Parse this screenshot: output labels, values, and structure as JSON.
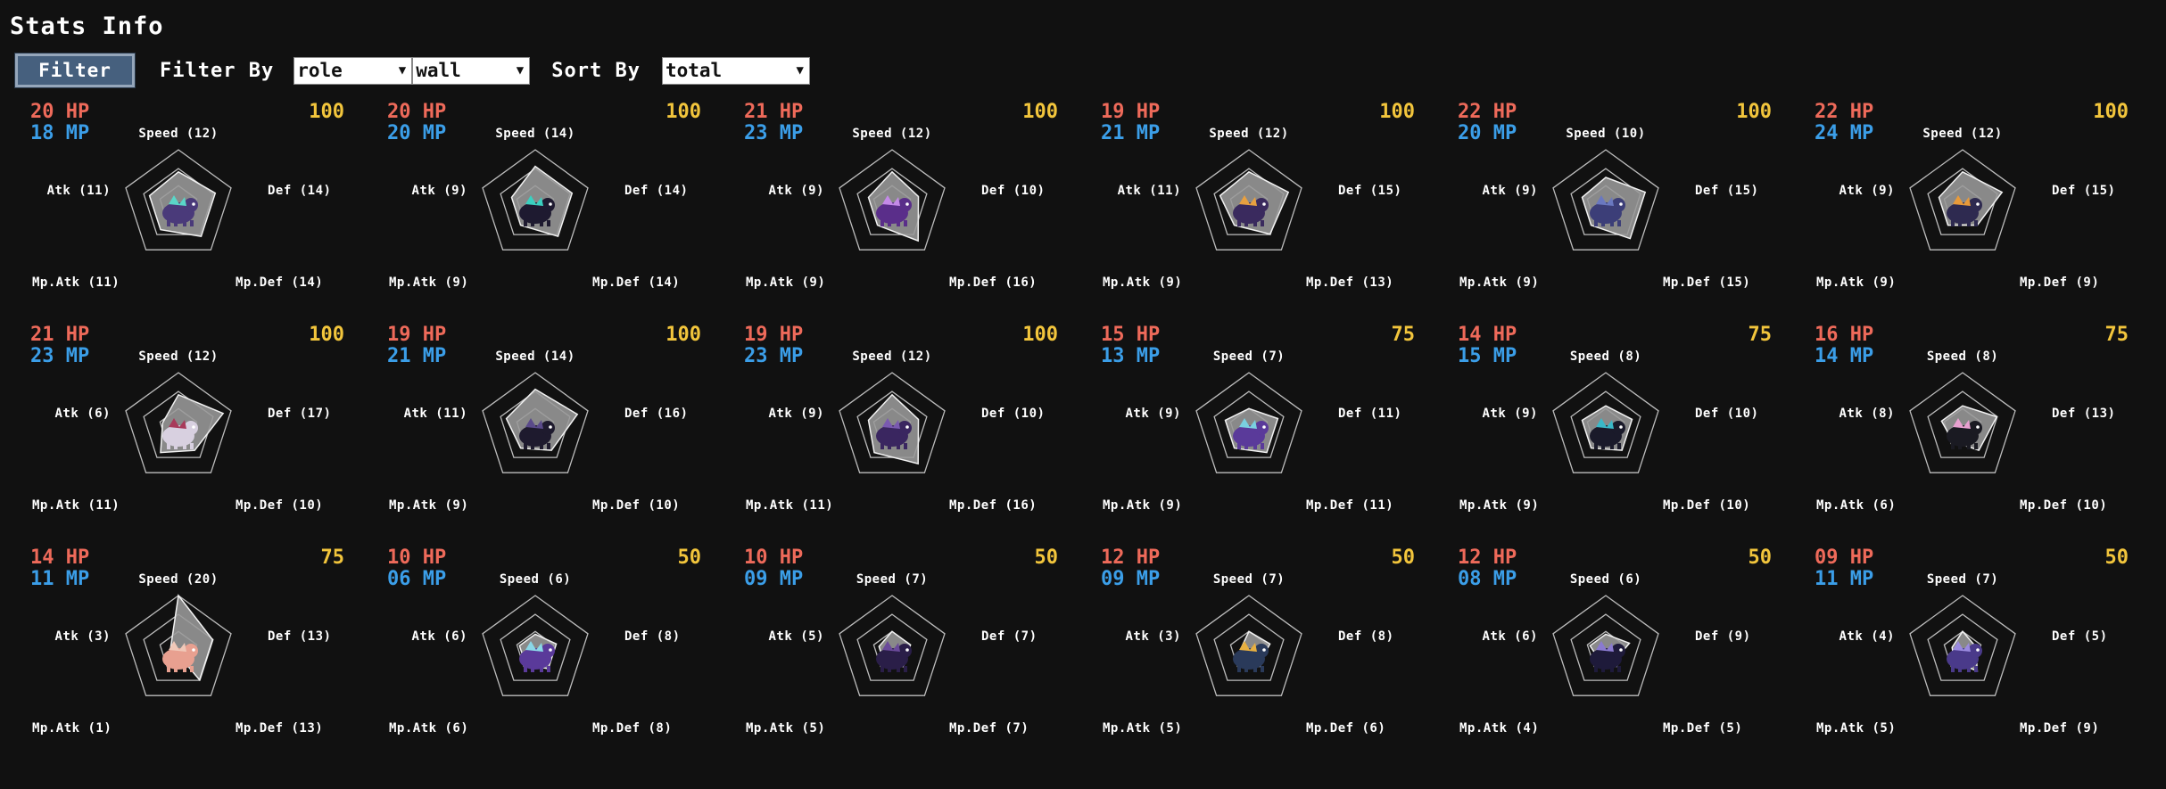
{
  "page": {
    "title": "Stats Info"
  },
  "toolbar": {
    "filter_button": "Filter",
    "filter_by_label": "Filter By",
    "filter_role_value": "role",
    "filter_type_value": "wall",
    "sort_by_label": "Sort By",
    "sort_value": "total"
  },
  "labels": {
    "speed": "Speed",
    "atk": "Atk",
    "def": "Def",
    "mp_atk": "Mp.Atk",
    "mp_def": "Mp.Def"
  },
  "colors": {
    "hp": "#ee6a5a",
    "mp": "#3b9ee8",
    "score": "#f2c53c",
    "background": "#111111"
  },
  "stat_max": 20,
  "monsters": [
    {
      "hp_text": "20 HP",
      "mp_text": "18 MP",
      "score": "100",
      "speed": 12,
      "atk": 11,
      "def": 14,
      "mp_atk": 11,
      "mp_def": 14,
      "speed_text": "Speed (12)",
      "atk_text": "Atk (11)",
      "def_text": "Def (14)",
      "mp_atk_text": "Mp.Atk (11)",
      "mp_def_text": "Mp.Def (14)",
      "sprite": "teal-crystal-beast",
      "c1": "#4a3a7a",
      "c2": "#5ad6c8"
    },
    {
      "hp_text": "20 HP",
      "mp_text": "20 MP",
      "score": "100",
      "speed": 14,
      "atk": 9,
      "def": 14,
      "mp_atk": 9,
      "mp_def": 14,
      "speed_text": "Speed (14)",
      "atk_text": "Atk (9)",
      "def_text": "Def (14)",
      "mp_atk_text": "Mp.Atk (9)",
      "mp_def_text": "Mp.Def (14)",
      "sprite": "dark-crawler",
      "c1": "#1e1a30",
      "c2": "#3ad0c0"
    },
    {
      "hp_text": "21 HP",
      "mp_text": "23 MP",
      "score": "100",
      "speed": 12,
      "atk": 9,
      "def": 10,
      "mp_atk": 9,
      "mp_def": 16,
      "speed_text": "Speed (12)",
      "atk_text": "Atk (9)",
      "def_text": "Def (10)",
      "mp_atk_text": "Mp.Atk (9)",
      "mp_def_text": "Mp.Def (16)",
      "sprite": "purple-orb",
      "c1": "#5a2e8a",
      "c2": "#c48ae8"
    },
    {
      "hp_text": "19 HP",
      "mp_text": "21 MP",
      "score": "100",
      "speed": 12,
      "atk": 11,
      "def": 15,
      "mp_atk": 9,
      "mp_def": 13,
      "speed_text": "Speed (12)",
      "atk_text": "Atk (11)",
      "def_text": "Def (15)",
      "mp_atk_text": "Mp.Atk (9)",
      "mp_def_text": "Mp.Def (13)",
      "sprite": "spiked-dino",
      "c1": "#3a2a5e",
      "c2": "#e8a040"
    },
    {
      "hp_text": "22 HP",
      "mp_text": "20 MP",
      "score": "100",
      "speed": 10,
      "atk": 9,
      "def": 15,
      "mp_atk": 9,
      "mp_def": 15,
      "speed_text": "Speed (10)",
      "atk_text": "Atk (9)",
      "def_text": "Def (15)",
      "mp_atk_text": "Mp.Atk (9)",
      "mp_def_text": "Mp.Def (15)",
      "sprite": "rock-golem",
      "c1": "#3c3e78",
      "c2": "#6a78c0"
    },
    {
      "hp_text": "22 HP",
      "mp_text": "24 MP",
      "score": "100",
      "speed": 12,
      "atk": 9,
      "def": 15,
      "mp_atk": 9,
      "mp_def": 9,
      "speed_text": "Speed (12)",
      "atk_text": "Atk (9)",
      "def_text": "Def (15)",
      "mp_atk_text": "Mp.Atk (9)",
      "mp_def_text": "Mp.Def (9)",
      "sprite": "horned-beast",
      "c1": "#2e2a50",
      "c2": "#e89a3a"
    },
    {
      "hp_text": "21 HP",
      "mp_text": "23 MP",
      "score": "100",
      "speed": 12,
      "atk": 6,
      "def": 17,
      "mp_atk": 11,
      "mp_def": 10,
      "speed_text": "Speed (12)",
      "atk_text": "Atk (6)",
      "def_text": "Def (17)",
      "mp_atk_text": "Mp.Atk (11)",
      "mp_def_text": "Mp.Def (10)",
      "sprite": "tentacle-ghost",
      "c1": "#d8d0e0",
      "c2": "#a83a5a"
    },
    {
      "hp_text": "19 HP",
      "mp_text": "21 MP",
      "score": "100",
      "speed": 14,
      "atk": 11,
      "def": 16,
      "mp_atk": 9,
      "mp_def": 10,
      "speed_text": "Speed (14)",
      "atk_text": "Atk (11)",
      "def_text": "Def (16)",
      "mp_atk_text": "Mp.Atk (9)",
      "mp_def_text": "Mp.Def (10)",
      "sprite": "shadow-bear",
      "c1": "#1e1a2e",
      "c2": "#5a4a8a"
    },
    {
      "hp_text": "19 HP",
      "mp_text": "23 MP",
      "score": "100",
      "speed": 12,
      "atk": 9,
      "def": 10,
      "mp_atk": 11,
      "mp_def": 16,
      "speed_text": "Speed (12)",
      "atk_text": "Atk (9)",
      "def_text": "Def (10)",
      "mp_atk_text": "Mp.Atk (11)",
      "mp_def_text": "Mp.Def (16)",
      "sprite": "night-cat",
      "c1": "#3a2660",
      "c2": "#7a5ab0"
    },
    {
      "hp_text": "15 HP",
      "mp_text": "13 MP",
      "score": "75",
      "speed": 7,
      "atk": 9,
      "def": 11,
      "mp_atk": 9,
      "mp_def": 11,
      "speed_text": "Speed (7)",
      "atk_text": "Atk (9)",
      "def_text": "Def (11)",
      "mp_atk_text": "Mp.Atk (9)",
      "mp_def_text": "Mp.Def (11)",
      "sprite": "crystal-fox",
      "c1": "#5a3a9a",
      "c2": "#7ad0e0"
    },
    {
      "hp_text": "14 HP",
      "mp_text": "15 MP",
      "score": "75",
      "speed": 8,
      "atk": 9,
      "def": 10,
      "mp_atk": 9,
      "mp_def": 10,
      "speed_text": "Speed (8)",
      "atk_text": "Atk (9)",
      "def_text": "Def (10)",
      "mp_atk_text": "Mp.Atk (9)",
      "mp_def_text": "Mp.Def (10)",
      "sprite": "dark-shark",
      "c1": "#1a1a2a",
      "c2": "#3ab8c8"
    },
    {
      "hp_text": "16 HP",
      "mp_text": "14 MP",
      "score": "75",
      "speed": 8,
      "atk": 8,
      "def": 13,
      "mp_atk": 6,
      "mp_def": 10,
      "speed_text": "Speed (8)",
      "atk_text": "Atk (8)",
      "def_text": "Def (13)",
      "mp_atk_text": "Mp.Atk (6)",
      "mp_def_text": "Mp.Def (10)",
      "sprite": "pink-bird",
      "c1": "#1a1a22",
      "c2": "#e8a0d0"
    },
    {
      "hp_text": "14 HP",
      "mp_text": "11 MP",
      "score": "75",
      "speed": 20,
      "atk": 3,
      "def": 13,
      "mp_atk": 1,
      "mp_def": 13,
      "speed_text": "Speed (20)",
      "atk_text": "Atk (3)",
      "def_text": "Def (13)",
      "mp_atk_text": "Mp.Atk (1)",
      "mp_def_text": "Mp.Def (13)",
      "sprite": "pink-mouse",
      "c1": "#e8a090",
      "c2": "#f0c8b8"
    },
    {
      "hp_text": "10 HP",
      "mp_text": "06 MP",
      "score": "50",
      "speed": 6,
      "atk": 6,
      "def": 8,
      "mp_atk": 6,
      "mp_def": 8,
      "speed_text": "Speed (6)",
      "atk_text": "Atk (6)",
      "def_text": "Def (8)",
      "mp_atk_text": "Mp.Atk (6)",
      "mp_def_text": "Mp.Def (8)",
      "sprite": "crystal-pup",
      "c1": "#5a3a9a",
      "c2": "#8ad8e8"
    },
    {
      "hp_text": "10 HP",
      "mp_text": "09 MP",
      "score": "50",
      "speed": 7,
      "atk": 5,
      "def": 7,
      "mp_atk": 5,
      "mp_def": 7,
      "speed_text": "Speed (7)",
      "atk_text": "Atk (5)",
      "def_text": "Def (7)",
      "mp_atk_text": "Mp.Atk (5)",
      "mp_def_text": "Mp.Def (7)",
      "sprite": "shadow-blob",
      "c1": "#2a1e48",
      "c2": "#6a4a9a"
    },
    {
      "hp_text": "12 HP",
      "mp_text": "09 MP",
      "score": "50",
      "speed": 7,
      "atk": 3,
      "def": 8,
      "mp_atk": 5,
      "mp_def": 6,
      "speed_text": "Speed (7)",
      "atk_text": "Atk (3)",
      "def_text": "Def (8)",
      "mp_atk_text": "Mp.Atk (5)",
      "mp_def_text": "Mp.Def (6)",
      "sprite": "armored-knight",
      "c1": "#2a3a5a",
      "c2": "#e8b040"
    },
    {
      "hp_text": "12 HP",
      "mp_text": "08 MP",
      "score": "50",
      "speed": 6,
      "atk": 6,
      "def": 9,
      "mp_atk": 4,
      "mp_def": 5,
      "speed_text": "Speed (6)",
      "atk_text": "Atk (6)",
      "def_text": "Def (9)",
      "mp_atk_text": "Mp.Atk (4)",
      "mp_def_text": "Mp.Def (5)",
      "sprite": "star-panther",
      "c1": "#1e1a3a",
      "c2": "#8a7ad0"
    },
    {
      "hp_text": "09 HP",
      "mp_text": "11 MP",
      "score": "50",
      "speed": 7,
      "atk": 4,
      "def": 5,
      "mp_atk": 5,
      "mp_def": 9,
      "speed_text": "Speed (7)",
      "atk_text": "Atk (4)",
      "def_text": "Def (5)",
      "mp_atk_text": "Mp.Atk (5)",
      "mp_def_text": "Mp.Def (9)",
      "sprite": "violet-cat",
      "c1": "#4a3a8a",
      "c2": "#9a8ae0"
    }
  ]
}
